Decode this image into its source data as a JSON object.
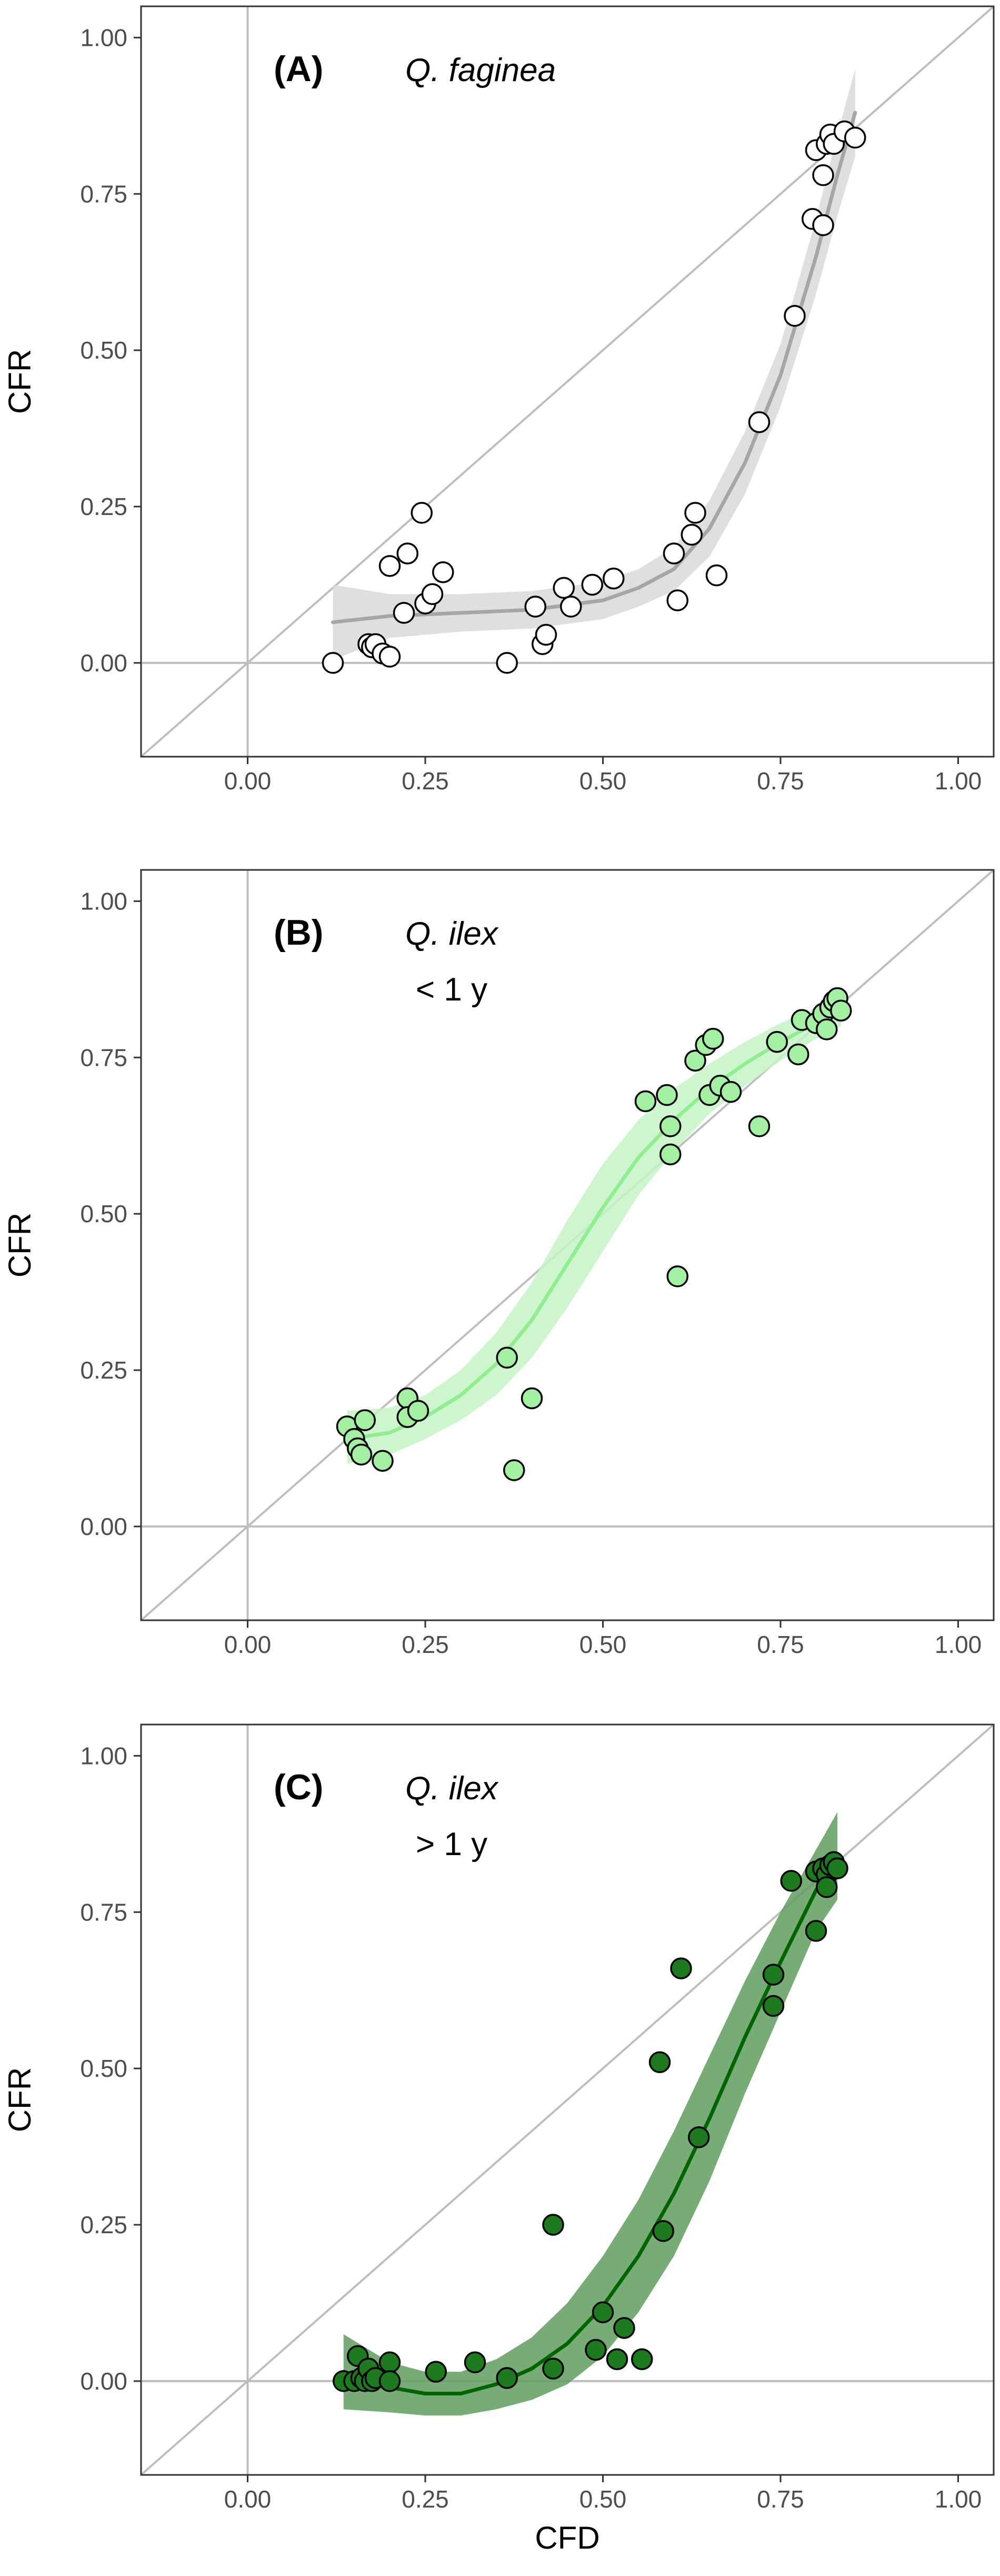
{
  "figure": {
    "x_axis_title": "CFD",
    "y_axis_title": "CFR",
    "colors": {
      "reference_lines": "#bebebe",
      "panel_border": "#333333",
      "tick_label": "#4d4d4d"
    }
  },
  "chart_data": [
    {
      "type": "scatter",
      "panel": "A",
      "label": "(A)",
      "species": "Q. faginea",
      "age_class": "",
      "xlabel": "",
      "ylabel": "CFR",
      "xlim": [
        -0.15,
        1.05
      ],
      "ylim": [
        -0.15,
        1.05
      ],
      "x_ticks": [
        "0.00",
        "0.25",
        "0.50",
        "0.75",
        "1.00"
      ],
      "y_ticks": [
        "0.00",
        "0.25",
        "0.50",
        "0.75",
        "1.00"
      ],
      "grid": false,
      "reference_lines": [
        "x = 0",
        "y = 0",
        "y = x"
      ],
      "colors": {
        "fill": "#ffffff",
        "stroke": "#000000",
        "smooth": "#a6a6a6",
        "band": "#d9d9d9"
      },
      "points": [
        {
          "x": 0.12,
          "y": 0.0
        },
        {
          "x": 0.17,
          "y": 0.03
        },
        {
          "x": 0.175,
          "y": 0.025
        },
        {
          "x": 0.18,
          "y": 0.03
        },
        {
          "x": 0.19,
          "y": 0.015
        },
        {
          "x": 0.2,
          "y": 0.01
        },
        {
          "x": 0.2,
          "y": 0.155
        },
        {
          "x": 0.22,
          "y": 0.08
        },
        {
          "x": 0.225,
          "y": 0.175
        },
        {
          "x": 0.245,
          "y": 0.24
        },
        {
          "x": 0.25,
          "y": 0.095
        },
        {
          "x": 0.26,
          "y": 0.11
        },
        {
          "x": 0.275,
          "y": 0.145
        },
        {
          "x": 0.365,
          "y": 0.0
        },
        {
          "x": 0.405,
          "y": 0.09
        },
        {
          "x": 0.415,
          "y": 0.03
        },
        {
          "x": 0.42,
          "y": 0.045
        },
        {
          "x": 0.445,
          "y": 0.12
        },
        {
          "x": 0.455,
          "y": 0.09
        },
        {
          "x": 0.485,
          "y": 0.125
        },
        {
          "x": 0.515,
          "y": 0.135
        },
        {
          "x": 0.6,
          "y": 0.175
        },
        {
          "x": 0.605,
          "y": 0.1
        },
        {
          "x": 0.625,
          "y": 0.205
        },
        {
          "x": 0.63,
          "y": 0.24
        },
        {
          "x": 0.66,
          "y": 0.14
        },
        {
          "x": 0.72,
          "y": 0.385
        },
        {
          "x": 0.77,
          "y": 0.555
        },
        {
          "x": 0.795,
          "y": 0.71
        },
        {
          "x": 0.8,
          "y": 0.82
        },
        {
          "x": 0.81,
          "y": 0.7
        },
        {
          "x": 0.81,
          "y": 0.78
        },
        {
          "x": 0.815,
          "y": 0.83
        },
        {
          "x": 0.82,
          "y": 0.845
        },
        {
          "x": 0.825,
          "y": 0.83
        },
        {
          "x": 0.84,
          "y": 0.85
        },
        {
          "x": 0.855,
          "y": 0.84
        }
      ],
      "smooth": [
        {
          "x": 0.12,
          "y": 0.065
        },
        {
          "x": 0.2,
          "y": 0.075
        },
        {
          "x": 0.3,
          "y": 0.08
        },
        {
          "x": 0.4,
          "y": 0.085
        },
        {
          "x": 0.5,
          "y": 0.1
        },
        {
          "x": 0.55,
          "y": 0.12
        },
        {
          "x": 0.6,
          "y": 0.15
        },
        {
          "x": 0.65,
          "y": 0.215
        },
        {
          "x": 0.7,
          "y": 0.32
        },
        {
          "x": 0.75,
          "y": 0.46
        },
        {
          "x": 0.8,
          "y": 0.65
        },
        {
          "x": 0.83,
          "y": 0.78
        },
        {
          "x": 0.855,
          "y": 0.88
        }
      ],
      "band_upper": [
        {
          "x": 0.12,
          "y": 0.125
        },
        {
          "x": 0.2,
          "y": 0.11
        },
        {
          "x": 0.3,
          "y": 0.11
        },
        {
          "x": 0.4,
          "y": 0.115
        },
        {
          "x": 0.5,
          "y": 0.13
        },
        {
          "x": 0.55,
          "y": 0.15
        },
        {
          "x": 0.6,
          "y": 0.185
        },
        {
          "x": 0.65,
          "y": 0.26
        },
        {
          "x": 0.7,
          "y": 0.37
        },
        {
          "x": 0.75,
          "y": 0.51
        },
        {
          "x": 0.8,
          "y": 0.71
        },
        {
          "x": 0.83,
          "y": 0.845
        },
        {
          "x": 0.855,
          "y": 0.95
        }
      ],
      "band_lower": [
        {
          "x": 0.12,
          "y": 0.005
        },
        {
          "x": 0.2,
          "y": 0.04
        },
        {
          "x": 0.3,
          "y": 0.05
        },
        {
          "x": 0.4,
          "y": 0.055
        },
        {
          "x": 0.5,
          "y": 0.07
        },
        {
          "x": 0.55,
          "y": 0.09
        },
        {
          "x": 0.6,
          "y": 0.115
        },
        {
          "x": 0.65,
          "y": 0.17
        },
        {
          "x": 0.7,
          "y": 0.27
        },
        {
          "x": 0.75,
          "y": 0.41
        },
        {
          "x": 0.8,
          "y": 0.59
        },
        {
          "x": 0.83,
          "y": 0.715
        },
        {
          "x": 0.855,
          "y": 0.81
        }
      ]
    },
    {
      "type": "scatter",
      "panel": "B",
      "label": "(B)",
      "species": "Q. ilex",
      "age_class": "< 1 y",
      "xlabel": "",
      "ylabel": "CFR",
      "xlim": [
        -0.15,
        1.05
      ],
      "ylim": [
        -0.15,
        1.05
      ],
      "x_ticks": [
        "0.00",
        "0.25",
        "0.50",
        "0.75",
        "1.00"
      ],
      "y_ticks": [
        "0.00",
        "0.25",
        "0.50",
        "0.75",
        "1.00"
      ],
      "grid": false,
      "reference_lines": [
        "x = 0",
        "y = 0",
        "y = x"
      ],
      "colors": {
        "fill": "#a3f0a3",
        "stroke": "#000000",
        "smooth": "#90ee90",
        "band": "#c5f5c5"
      },
      "points": [
        {
          "x": 0.14,
          "y": 0.16
        },
        {
          "x": 0.15,
          "y": 0.14
        },
        {
          "x": 0.155,
          "y": 0.125
        },
        {
          "x": 0.16,
          "y": 0.115
        },
        {
          "x": 0.165,
          "y": 0.17
        },
        {
          "x": 0.19,
          "y": 0.105
        },
        {
          "x": 0.225,
          "y": 0.205
        },
        {
          "x": 0.225,
          "y": 0.175
        },
        {
          "x": 0.24,
          "y": 0.185
        },
        {
          "x": 0.365,
          "y": 0.27
        },
        {
          "x": 0.375,
          "y": 0.09
        },
        {
          "x": 0.4,
          "y": 0.205
        },
        {
          "x": 0.56,
          "y": 0.68
        },
        {
          "x": 0.59,
          "y": 0.69
        },
        {
          "x": 0.595,
          "y": 0.64
        },
        {
          "x": 0.595,
          "y": 0.595
        },
        {
          "x": 0.605,
          "y": 0.4
        },
        {
          "x": 0.63,
          "y": 0.745
        },
        {
          "x": 0.645,
          "y": 0.77
        },
        {
          "x": 0.65,
          "y": 0.69
        },
        {
          "x": 0.655,
          "y": 0.78
        },
        {
          "x": 0.665,
          "y": 0.705
        },
        {
          "x": 0.68,
          "y": 0.695
        },
        {
          "x": 0.72,
          "y": 0.64
        },
        {
          "x": 0.745,
          "y": 0.775
        },
        {
          "x": 0.775,
          "y": 0.755
        },
        {
          "x": 0.78,
          "y": 0.81
        },
        {
          "x": 0.8,
          "y": 0.805
        },
        {
          "x": 0.81,
          "y": 0.82
        },
        {
          "x": 0.815,
          "y": 0.795
        },
        {
          "x": 0.82,
          "y": 0.83
        },
        {
          "x": 0.825,
          "y": 0.84
        },
        {
          "x": 0.83,
          "y": 0.845
        },
        {
          "x": 0.835,
          "y": 0.825
        }
      ],
      "smooth": [
        {
          "x": 0.14,
          "y": 0.14
        },
        {
          "x": 0.2,
          "y": 0.15
        },
        {
          "x": 0.25,
          "y": 0.175
        },
        {
          "x": 0.3,
          "y": 0.21
        },
        {
          "x": 0.35,
          "y": 0.26
        },
        {
          "x": 0.4,
          "y": 0.33
        },
        {
          "x": 0.45,
          "y": 0.42
        },
        {
          "x": 0.5,
          "y": 0.51
        },
        {
          "x": 0.55,
          "y": 0.59
        },
        {
          "x": 0.6,
          "y": 0.65
        },
        {
          "x": 0.65,
          "y": 0.7
        },
        {
          "x": 0.7,
          "y": 0.74
        },
        {
          "x": 0.75,
          "y": 0.775
        },
        {
          "x": 0.8,
          "y": 0.805
        },
        {
          "x": 0.835,
          "y": 0.825
        }
      ],
      "band_upper": [
        {
          "x": 0.14,
          "y": 0.185
        },
        {
          "x": 0.2,
          "y": 0.19
        },
        {
          "x": 0.25,
          "y": 0.21
        },
        {
          "x": 0.3,
          "y": 0.25
        },
        {
          "x": 0.35,
          "y": 0.31
        },
        {
          "x": 0.4,
          "y": 0.39
        },
        {
          "x": 0.45,
          "y": 0.49
        },
        {
          "x": 0.5,
          "y": 0.58
        },
        {
          "x": 0.55,
          "y": 0.65
        },
        {
          "x": 0.6,
          "y": 0.7
        },
        {
          "x": 0.65,
          "y": 0.74
        },
        {
          "x": 0.7,
          "y": 0.775
        },
        {
          "x": 0.75,
          "y": 0.805
        },
        {
          "x": 0.8,
          "y": 0.83
        },
        {
          "x": 0.835,
          "y": 0.85
        }
      ],
      "band_lower": [
        {
          "x": 0.14,
          "y": 0.1
        },
        {
          "x": 0.2,
          "y": 0.115
        },
        {
          "x": 0.25,
          "y": 0.14
        },
        {
          "x": 0.3,
          "y": 0.17
        },
        {
          "x": 0.35,
          "y": 0.21
        },
        {
          "x": 0.4,
          "y": 0.27
        },
        {
          "x": 0.45,
          "y": 0.35
        },
        {
          "x": 0.5,
          "y": 0.44
        },
        {
          "x": 0.55,
          "y": 0.53
        },
        {
          "x": 0.6,
          "y": 0.6
        },
        {
          "x": 0.65,
          "y": 0.66
        },
        {
          "x": 0.7,
          "y": 0.705
        },
        {
          "x": 0.75,
          "y": 0.745
        },
        {
          "x": 0.8,
          "y": 0.78
        },
        {
          "x": 0.835,
          "y": 0.8
        }
      ]
    },
    {
      "type": "scatter",
      "panel": "C",
      "label": "(C)",
      "species": "Q. ilex",
      "age_class": "> 1 y",
      "xlabel": "CFD",
      "ylabel": "CFR",
      "xlim": [
        -0.15,
        1.05
      ],
      "ylim": [
        -0.15,
        1.05
      ],
      "x_ticks": [
        "0.00",
        "0.25",
        "0.50",
        "0.75",
        "1.00"
      ],
      "y_ticks": [
        "0.00",
        "0.25",
        "0.50",
        "0.75",
        "1.00"
      ],
      "grid": false,
      "reference_lines": [
        "x = 0",
        "y = 0",
        "y = x"
      ],
      "colors": {
        "fill": "#1e7a1e",
        "stroke": "#000000",
        "smooth": "#006400",
        "band": "#5f9e5f"
      },
      "points": [
        {
          "x": 0.135,
          "y": 0.0
        },
        {
          "x": 0.15,
          "y": 0.0
        },
        {
          "x": 0.155,
          "y": 0.04
        },
        {
          "x": 0.16,
          "y": 0.005
        },
        {
          "x": 0.165,
          "y": 0.0
        },
        {
          "x": 0.17,
          "y": 0.02
        },
        {
          "x": 0.175,
          "y": 0.0
        },
        {
          "x": 0.18,
          "y": 0.005
        },
        {
          "x": 0.2,
          "y": 0.03
        },
        {
          "x": 0.2,
          "y": 0.0
        },
        {
          "x": 0.265,
          "y": 0.015
        },
        {
          "x": 0.32,
          "y": 0.03
        },
        {
          "x": 0.365,
          "y": 0.005
        },
        {
          "x": 0.43,
          "y": 0.25
        },
        {
          "x": 0.43,
          "y": 0.02
        },
        {
          "x": 0.49,
          "y": 0.05
        },
        {
          "x": 0.5,
          "y": 0.11
        },
        {
          "x": 0.52,
          "y": 0.035
        },
        {
          "x": 0.53,
          "y": 0.085
        },
        {
          "x": 0.555,
          "y": 0.035
        },
        {
          "x": 0.58,
          "y": 0.51
        },
        {
          "x": 0.585,
          "y": 0.24
        },
        {
          "x": 0.61,
          "y": 0.66
        },
        {
          "x": 0.635,
          "y": 0.39
        },
        {
          "x": 0.74,
          "y": 0.6
        },
        {
          "x": 0.74,
          "y": 0.65
        },
        {
          "x": 0.765,
          "y": 0.8
        },
        {
          "x": 0.8,
          "y": 0.72
        },
        {
          "x": 0.8,
          "y": 0.815
        },
        {
          "x": 0.81,
          "y": 0.82
        },
        {
          "x": 0.815,
          "y": 0.81
        },
        {
          "x": 0.815,
          "y": 0.79
        },
        {
          "x": 0.82,
          "y": 0.825
        },
        {
          "x": 0.825,
          "y": 0.83
        },
        {
          "x": 0.83,
          "y": 0.82
        }
      ],
      "smooth": [
        {
          "x": 0.135,
          "y": 0.015
        },
        {
          "x": 0.2,
          "y": -0.01
        },
        {
          "x": 0.25,
          "y": -0.02
        },
        {
          "x": 0.3,
          "y": -0.02
        },
        {
          "x": 0.35,
          "y": -0.005
        },
        {
          "x": 0.4,
          "y": 0.02
        },
        {
          "x": 0.45,
          "y": 0.06
        },
        {
          "x": 0.5,
          "y": 0.12
        },
        {
          "x": 0.55,
          "y": 0.2
        },
        {
          "x": 0.6,
          "y": 0.3
        },
        {
          "x": 0.65,
          "y": 0.42
        },
        {
          "x": 0.7,
          "y": 0.55
        },
        {
          "x": 0.75,
          "y": 0.67
        },
        {
          "x": 0.8,
          "y": 0.785
        },
        {
          "x": 0.83,
          "y": 0.84
        }
      ],
      "band_upper": [
        {
          "x": 0.135,
          "y": 0.075
        },
        {
          "x": 0.2,
          "y": 0.03
        },
        {
          "x": 0.25,
          "y": 0.015
        },
        {
          "x": 0.3,
          "y": 0.015
        },
        {
          "x": 0.35,
          "y": 0.035
        },
        {
          "x": 0.4,
          "y": 0.07
        },
        {
          "x": 0.45,
          "y": 0.125
        },
        {
          "x": 0.5,
          "y": 0.2
        },
        {
          "x": 0.55,
          "y": 0.29
        },
        {
          "x": 0.6,
          "y": 0.4
        },
        {
          "x": 0.65,
          "y": 0.52
        },
        {
          "x": 0.7,
          "y": 0.64
        },
        {
          "x": 0.75,
          "y": 0.75
        },
        {
          "x": 0.8,
          "y": 0.85
        },
        {
          "x": 0.83,
          "y": 0.91
        }
      ],
      "band_lower": [
        {
          "x": 0.135,
          "y": -0.045
        },
        {
          "x": 0.2,
          "y": -0.05
        },
        {
          "x": 0.25,
          "y": -0.055
        },
        {
          "x": 0.3,
          "y": -0.055
        },
        {
          "x": 0.35,
          "y": -0.045
        },
        {
          "x": 0.4,
          "y": -0.03
        },
        {
          "x": 0.45,
          "y": -0.005
        },
        {
          "x": 0.5,
          "y": 0.04
        },
        {
          "x": 0.55,
          "y": 0.11
        },
        {
          "x": 0.6,
          "y": 0.2
        },
        {
          "x": 0.65,
          "y": 0.32
        },
        {
          "x": 0.7,
          "y": 0.46
        },
        {
          "x": 0.75,
          "y": 0.59
        },
        {
          "x": 0.8,
          "y": 0.72
        },
        {
          "x": 0.83,
          "y": 0.77
        }
      ]
    }
  ]
}
